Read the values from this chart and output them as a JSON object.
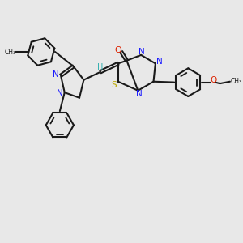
{
  "bg_color": "#e8e8e8",
  "bond_color": "#1a1a1a",
  "N_color": "#1a1aff",
  "O_color": "#dd2200",
  "S_color": "#bbaa00",
  "H_color": "#2aadad",
  "figsize": [
    3.0,
    3.0
  ],
  "dpi": 100,
  "xlim": [
    0,
    10
  ],
  "ylim": [
    0,
    10
  ]
}
